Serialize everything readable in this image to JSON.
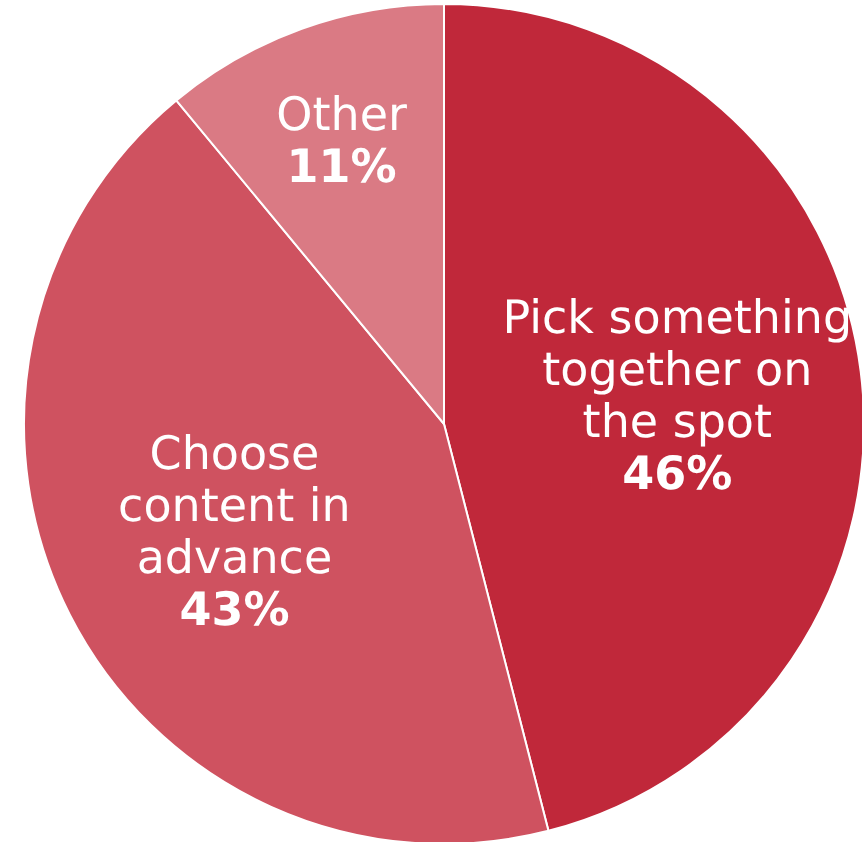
{
  "chart_data": {
    "type": "pie",
    "categories": [
      "Pick something\ntogether on\nthe spot",
      "Choose\ncontent in\nadvance",
      "Other"
    ],
    "values": [
      46,
      43,
      11
    ],
    "colors": [
      "#c0283a",
      "#cf5260",
      "#da7a84"
    ],
    "value_labels": [
      "46%",
      "43%",
      "11%"
    ]
  }
}
